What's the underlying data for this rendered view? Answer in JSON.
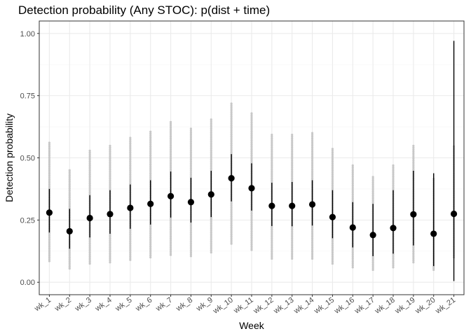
{
  "chart_data": {
    "type": "scatter",
    "title": "Detection probability (Any STOC): p(dist + time)",
    "xlabel": "Week",
    "ylabel": "Detection probability",
    "ylim": [
      -0.05,
      1.05
    ],
    "yticks": [
      0.0,
      0.25,
      0.5,
      0.75,
      1.0
    ],
    "ytick_labels": [
      "0.00",
      "0.25",
      "0.50",
      "0.75",
      "1.00"
    ],
    "grid": true,
    "legend": "none",
    "categories": [
      "wk_1",
      "wk_2",
      "wk_3",
      "wk_4",
      "wk_5",
      "wk_6",
      "wk_7",
      "wk_8",
      "wk_9",
      "wk_10",
      "wk_11",
      "wk_12",
      "wk_13",
      "wk_14",
      "wk_15",
      "wk_16",
      "wk_17",
      "wk_18",
      "wk_19",
      "wk_20",
      "wk_21"
    ],
    "series": [
      {
        "values": [
          0.28,
          0.205,
          0.258,
          0.274,
          0.299,
          0.315,
          0.346,
          0.322,
          0.353,
          0.418,
          0.378,
          0.307,
          0.307,
          0.313,
          0.262,
          0.22,
          0.19,
          0.218,
          0.273,
          0.195,
          0.275
        ],
        "lower": [
          0.2,
          0.135,
          0.18,
          0.195,
          0.215,
          0.232,
          0.26,
          0.24,
          0.262,
          0.325,
          0.288,
          0.226,
          0.225,
          0.228,
          0.177,
          0.14,
          0.105,
          0.115,
          0.148,
          0.065,
          0.005
        ],
        "upper": [
          0.375,
          0.295,
          0.35,
          0.37,
          0.393,
          0.41,
          0.445,
          0.42,
          0.448,
          0.515,
          0.478,
          0.4,
          0.403,
          0.41,
          0.37,
          0.322,
          0.315,
          0.37,
          0.448,
          0.438,
          0.97
        ]
      },
      {
        "lower": [
          0.085,
          0.055,
          0.075,
          0.08,
          0.09,
          0.1,
          0.11,
          0.105,
          0.12,
          0.155,
          0.13,
          0.095,
          0.095,
          0.095,
          0.075,
          0.06,
          0.05,
          0.06,
          0.08,
          0.05,
          0.1
        ],
        "upper": [
          0.565,
          0.45,
          0.53,
          0.555,
          0.585,
          0.605,
          0.645,
          0.62,
          0.655,
          0.72,
          0.68,
          0.595,
          0.595,
          0.605,
          0.54,
          0.47,
          0.425,
          0.47,
          0.555,
          0.42,
          0.55
        ]
      }
    ],
    "colors": {
      "point": "#000000",
      "interval": "#000000",
      "posterior": "#c8c8c8",
      "panel": "#ffffff",
      "border": "#333333",
      "grid_major": "#ebebeb",
      "grid_minor": "#f5f5f5"
    }
  }
}
